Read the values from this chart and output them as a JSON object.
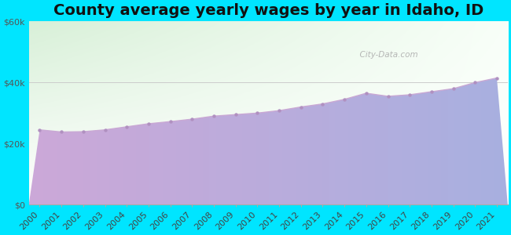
{
  "title": "County average yearly wages by year in Idaho, ID",
  "years": [
    2000,
    2001,
    2002,
    2003,
    2004,
    2005,
    2006,
    2007,
    2008,
    2009,
    2010,
    2011,
    2012,
    2013,
    2014,
    2015,
    2016,
    2017,
    2018,
    2019,
    2020,
    2021
  ],
  "wages": [
    24500,
    23800,
    23900,
    24500,
    25500,
    26500,
    27200,
    28000,
    29000,
    29500,
    30000,
    30800,
    32000,
    33000,
    34500,
    36500,
    35500,
    36000,
    37000,
    38000,
    40000,
    41500
  ],
  "ylim": [
    0,
    60000
  ],
  "yticks": [
    0,
    20000,
    40000,
    60000
  ],
  "ytick_labels": [
    "$0",
    "$20k",
    "$40k",
    "$60k"
  ],
  "line_color": "#c9a8d4",
  "fill_color_left": "#c8a8d8",
  "fill_color_right": "#a8b8e8",
  "marker_color": "#b090c0",
  "outer_bg": "#00e5ff",
  "plot_bg_topleft": "#d8f0d8",
  "plot_bg_topright": "#f8fff8",
  "watermark": "  City-Data.com",
  "title_fontsize": 14,
  "tick_fontsize": 8
}
